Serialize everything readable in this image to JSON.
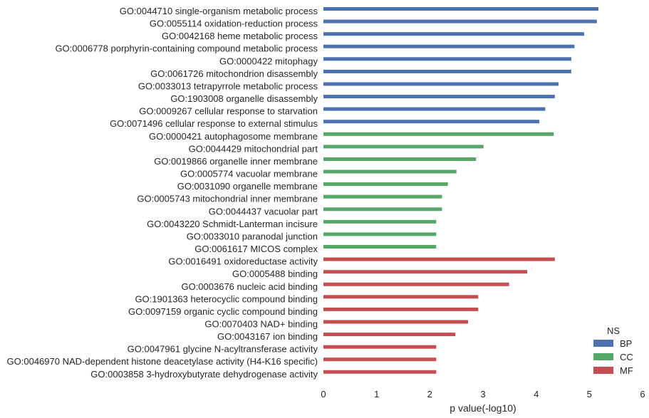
{
  "chart_data": {
    "type": "bar",
    "orientation": "horizontal",
    "title": "",
    "xlabel": "p value(-log10)",
    "ylabel": "",
    "xlim": [
      0,
      6
    ],
    "xticks": [
      0,
      1,
      2,
      3,
      4,
      5,
      6
    ],
    "grid": false,
    "legend": {
      "title": "NS",
      "placement": "bottom-right",
      "entries": [
        {
          "name": "BP",
          "color": "#4c72b0"
        },
        {
          "name": "CC",
          "color": "#55a868"
        },
        {
          "name": "MF",
          "color": "#c44e52"
        }
      ]
    },
    "bars": [
      {
        "label": "GO:0044710 single-organism metabolic process",
        "value": 5.17,
        "ns": "BP"
      },
      {
        "label": "GO:0055114 oxidation-reduction process",
        "value": 5.14,
        "ns": "BP"
      },
      {
        "label": "GO:0042168 heme metabolic process",
        "value": 4.9,
        "ns": "BP"
      },
      {
        "label": "GO:0006778 porphyrin-containing compound metabolic process",
        "value": 4.72,
        "ns": "BP"
      },
      {
        "label": "GO:0000422 mitophagy",
        "value": 4.66,
        "ns": "BP"
      },
      {
        "label": "GO:0061726 mitochondrion disassembly",
        "value": 4.66,
        "ns": "BP"
      },
      {
        "label": "GO:0033013 tetrapyrrole metabolic process",
        "value": 4.42,
        "ns": "BP"
      },
      {
        "label": "GO:1903008 organelle disassembly",
        "value": 4.35,
        "ns": "BP"
      },
      {
        "label": "GO:0009267 cellular response to starvation",
        "value": 4.17,
        "ns": "BP"
      },
      {
        "label": "GO:0071496 cellular response to external stimulus",
        "value": 4.06,
        "ns": "BP"
      },
      {
        "label": "GO:0000421 autophagosome membrane",
        "value": 4.33,
        "ns": "CC"
      },
      {
        "label": "GO:0044429 mitochondrial part",
        "value": 3.01,
        "ns": "CC"
      },
      {
        "label": "GO:0019866 organelle inner membrane",
        "value": 2.87,
        "ns": "CC"
      },
      {
        "label": "GO:0005774 vacuolar membrane",
        "value": 2.5,
        "ns": "CC"
      },
      {
        "label": "GO:0031090 organelle membrane",
        "value": 2.34,
        "ns": "CC"
      },
      {
        "label": "GO:0005743 mitochondrial inner membrane",
        "value": 2.23,
        "ns": "CC"
      },
      {
        "label": "GO:0044437 vacuolar part",
        "value": 2.23,
        "ns": "CC"
      },
      {
        "label": "GO:0043220 Schmidt-Lanterman incisure",
        "value": 2.12,
        "ns": "CC"
      },
      {
        "label": "GO:0033010 paranodal junction",
        "value": 2.12,
        "ns": "CC"
      },
      {
        "label": "GO:0061617 MICOS complex",
        "value": 2.12,
        "ns": "CC"
      },
      {
        "label": "GO:0016491 oxidoreductase activity",
        "value": 4.35,
        "ns": "MF"
      },
      {
        "label": "GO:0005488 binding",
        "value": 3.83,
        "ns": "MF"
      },
      {
        "label": "GO:0003676 nucleic acid binding",
        "value": 3.49,
        "ns": "MF"
      },
      {
        "label": "GO:1901363 heterocyclic compound binding",
        "value": 2.91,
        "ns": "MF"
      },
      {
        "label": "GO:0097159 organic cyclic compound binding",
        "value": 2.91,
        "ns": "MF"
      },
      {
        "label": "GO:0070403 NAD+ binding",
        "value": 2.72,
        "ns": "MF"
      },
      {
        "label": "GO:0043167 ion binding",
        "value": 2.48,
        "ns": "MF"
      },
      {
        "label": "GO:0047961 glycine N-acyltransferase activity",
        "value": 2.12,
        "ns": "MF"
      },
      {
        "label": "GO:0046970 NAD-dependent histone deacetylase activity (H4-K16 specific)",
        "value": 2.12,
        "ns": "MF"
      },
      {
        "label": "GO:0003858 3-hydroxybutyrate dehydrogenase activity",
        "value": 2.12,
        "ns": "MF"
      }
    ]
  }
}
